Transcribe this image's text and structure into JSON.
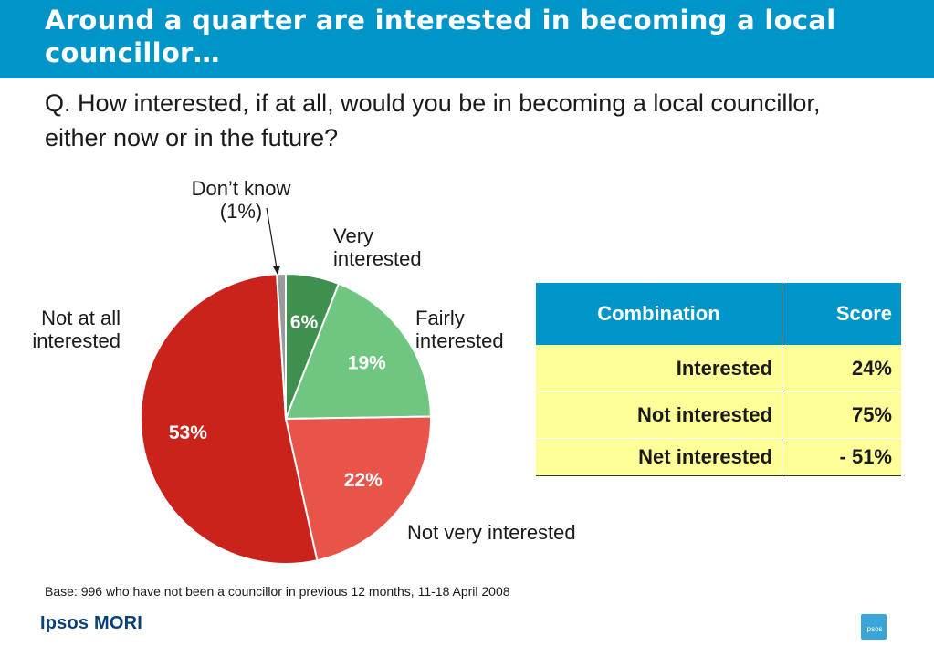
{
  "slide": {
    "title": "Around a quarter are interested in becoming a local councillor…",
    "question": "Q. How interested, if at all, would you be in becoming a local councillor, either now or in the future?",
    "footnote": "Base: 996  who have not been a councillor in previous 12 months, 11-18 April 2008",
    "brand": "Ipsos MORI",
    "badge_text": "Ipsos"
  },
  "chart_data": {
    "type": "pie",
    "title": "",
    "slices": [
      {
        "name": "Very interested",
        "value": 6,
        "label": "6%",
        "color": "#3f8f4f"
      },
      {
        "name": "Fairly interested",
        "value": 19,
        "label": "19%",
        "color": "#6ec681"
      },
      {
        "name": "Not very interested",
        "value": 22,
        "label": "22%",
        "color": "#e8544a"
      },
      {
        "name": "Not at all interested",
        "value": 53,
        "label": "53%",
        "color": "#c9231b"
      },
      {
        "name": "Don’t know (1%)",
        "value": 1,
        "label": "",
        "color": "#9a9a9a"
      }
    ]
  },
  "labels": {
    "dont_know_line1": "Don’t know",
    "dont_know_line2": "(1%)",
    "very_line1": "Very",
    "very_line2": "interested",
    "fairly_line1": "Fairly",
    "fairly_line2": "interested",
    "not_very": "Not very interested",
    "not_at_all_line1": "Not at all",
    "not_at_all_line2": "interested"
  },
  "table": {
    "headers": [
      "Combination",
      "Score"
    ],
    "rows": [
      [
        "Interested",
        "24%"
      ],
      [
        "Not interested",
        "75%"
      ],
      [
        "Net interested",
        "- 51%"
      ]
    ]
  }
}
